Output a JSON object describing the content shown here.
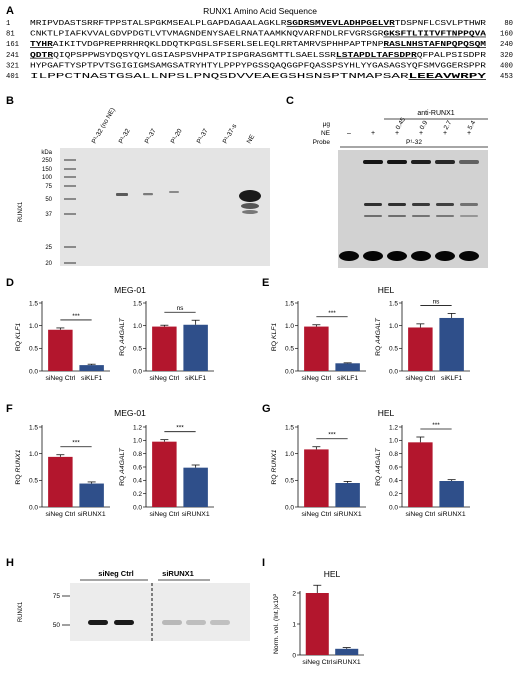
{
  "panelA": {
    "letter": "A",
    "title": "RUNX1 Amino Acid Sequence",
    "lines": [
      {
        "start": "1",
        "end": "80",
        "segs": [
          {
            "t": "MRIPVDASTSRRFTPPSTALSPGKMSEALPLGAPDAGAALAGKLR",
            "u": false
          },
          {
            "t": "SGDRSMVEVLADHPGELVR",
            "u": true
          },
          {
            "t": "TDSPNFLCSVLPTHWR",
            "u": false
          }
        ]
      },
      {
        "start": "81",
        "end": "160",
        "segs": [
          {
            "t": "CNKTLPIAFKVVALGDVPDGTLVTVMAGNDENYSAELRNATAAMKNQVARFNDLRFVGRSGR",
            "u": false
          },
          {
            "t": "GKSFTLTITVFTNPPQVA",
            "u": true
          }
        ]
      },
      {
        "start": "161",
        "end": "240",
        "segs": [
          {
            "t": "TYHR",
            "u": true
          },
          {
            "t": "AIKITVDGPREPRRHRQKLDDQTKPGSLSFSERLSELEQLRRTAMRVSPHHPAPTPNP",
            "u": false
          },
          {
            "t": "RASLNHSTAFNPQPQSQM",
            "u": true
          }
        ]
      },
      {
        "start": "241",
        "end": "320",
        "segs": [
          {
            "t": "QDTR",
            "u": true
          },
          {
            "t": "QIQPSPPWSYDQSYQYLGSIASPSVHPATPISPGRASGMTTLSAELSSR",
            "u": false
          },
          {
            "t": "LSTAPDLTAFSDPR",
            "u": true
          },
          {
            "t": "QFPALPSISDPR",
            "u": false
          }
        ]
      },
      {
        "start": "321",
        "end": "400",
        "segs": [
          {
            "t": "HYPGAFTYSPTPVTSGIGIGMSAMGSATRYHTYLPPPYPGSSQAQGGPFQASSPSYHLYYGASAGSYQFSMVGGERSPPR",
            "u": false
          }
        ]
      },
      {
        "start": "401",
        "end": "453",
        "segs": [
          {
            "t": "ILPPCTNASTGSALLNPSLPNQSDVVEAEGSHSNSPTNMAPSAR",
            "u": false
          },
          {
            "t": "LEEAVWRPY",
            "u": true
          }
        ]
      }
    ]
  },
  "panelB": {
    "letter": "B",
    "kda_label": "kDa",
    "side_label": "RUNX1",
    "ladder": [
      "250",
      "150",
      "100",
      "75",
      "50",
      "37",
      "25",
      "20"
    ],
    "lanes": [
      "P¹-32 (no NE)",
      "P¹-32",
      "P¹-37",
      "P¹-20",
      "P¹-37",
      "P¹-37-s",
      "NE"
    ]
  },
  "panelC": {
    "letter": "C",
    "antibody": "anti-RUNX1",
    "row_ug_label": "μg",
    "row_ne_label": "NE",
    "row_probe_label": "Probe",
    "ug_values": [
      "0.45",
      "0.9",
      "2.7",
      "5.4"
    ],
    "ne_values": [
      "–",
      "+",
      "+",
      "+",
      "+",
      "+"
    ],
    "probe": "P¹-32"
  },
  "chart_data": [
    {
      "panel": "D",
      "title": "MEG-01",
      "type": "bar",
      "ylabel_prefix": "RQ ",
      "ylabel_gene": "KLF1",
      "categories": [
        "siNeg Ctrl",
        "siKLF1"
      ],
      "values": [
        0.91,
        0.13
      ],
      "errors": [
        0.04,
        0.02
      ],
      "colors": [
        "#b3162d",
        "#2f4f8a"
      ],
      "ylim": [
        0,
        1.5
      ],
      "yticks": [
        "0.0",
        "0.5",
        "1.0",
        "1.5"
      ],
      "sig": "***"
    },
    {
      "panel": "D",
      "title": "",
      "type": "bar",
      "ylabel_prefix": "RQ ",
      "ylabel_gene": "A4GALT",
      "categories": [
        "siNeg Ctrl",
        "siKLF1"
      ],
      "values": [
        0.98,
        1.02
      ],
      "errors": [
        0.03,
        0.1
      ],
      "colors": [
        "#b3162d",
        "#2f4f8a"
      ],
      "ylim": [
        0,
        1.5
      ],
      "yticks": [
        "0.0",
        "0.5",
        "1.0",
        "1.5"
      ],
      "sig": "ns"
    },
    {
      "panel": "E",
      "title": "HEL",
      "type": "bar",
      "ylabel_prefix": "RQ ",
      "ylabel_gene": "KLF1",
      "categories": [
        "siNeg Ctrl",
        "siKLF1"
      ],
      "values": [
        0.98,
        0.17
      ],
      "errors": [
        0.04,
        0.01
      ],
      "colors": [
        "#b3162d",
        "#2f4f8a"
      ],
      "ylim": [
        0,
        1.5
      ],
      "yticks": [
        "0.0",
        "0.5",
        "1.0",
        "1.5"
      ],
      "sig": "***"
    },
    {
      "panel": "E",
      "title": "",
      "type": "bar",
      "ylabel_prefix": "RQ ",
      "ylabel_gene": "A4GALT",
      "categories": [
        "siNeg Ctrl",
        "siKLF1"
      ],
      "values": [
        0.96,
        1.17
      ],
      "errors": [
        0.08,
        0.1
      ],
      "colors": [
        "#b3162d",
        "#2f4f8a"
      ],
      "ylim": [
        0,
        1.5
      ],
      "yticks": [
        "0.0",
        "0.5",
        "1.0",
        "1.5"
      ],
      "sig": "ns"
    },
    {
      "panel": "F",
      "title": "MEG-01",
      "type": "bar",
      "ylabel_prefix": "RQ ",
      "ylabel_gene": "RUNX1",
      "categories": [
        "siNeg Ctrl",
        "siRUNX1"
      ],
      "values": [
        0.94,
        0.44
      ],
      "errors": [
        0.04,
        0.03
      ],
      "colors": [
        "#b3162d",
        "#2f4f8a"
      ],
      "ylim": [
        0,
        1.5
      ],
      "yticks": [
        "0.0",
        "0.5",
        "1.0",
        "1.5"
      ],
      "sig": "***"
    },
    {
      "panel": "F",
      "title": "",
      "type": "bar",
      "ylabel_prefix": "RQ ",
      "ylabel_gene": "A4GALT",
      "categories": [
        "siNeg Ctrl",
        "siRUNX1"
      ],
      "values": [
        0.98,
        0.59
      ],
      "errors": [
        0.03,
        0.04
      ],
      "colors": [
        "#b3162d",
        "#2f4f8a"
      ],
      "ylim": [
        0,
        1.2
      ],
      "yticks": [
        "0.0",
        "0.2",
        "0.4",
        "0.6",
        "0.8",
        "1.0",
        "1.2"
      ],
      "sig": "***"
    },
    {
      "panel": "G",
      "title": "HEL",
      "type": "bar",
      "ylabel_prefix": "RQ ",
      "ylabel_gene": "RUNX1",
      "categories": [
        "siNeg Ctrl",
        "siRUNX1"
      ],
      "values": [
        1.08,
        0.45
      ],
      "errors": [
        0.05,
        0.03
      ],
      "colors": [
        "#b3162d",
        "#2f4f8a"
      ],
      "ylim": [
        0,
        1.5
      ],
      "yticks": [
        "0.0",
        "0.5",
        "1.0",
        "1.5"
      ],
      "sig": "***"
    },
    {
      "panel": "G",
      "title": "",
      "type": "bar",
      "ylabel_prefix": "RQ ",
      "ylabel_gene": "A4GALT",
      "categories": [
        "siNeg Ctrl",
        "siRUNX1"
      ],
      "values": [
        0.97,
        0.39
      ],
      "errors": [
        0.08,
        0.02
      ],
      "colors": [
        "#b3162d",
        "#2f4f8a"
      ],
      "ylim": [
        0,
        1.2
      ],
      "yticks": [
        "0.0",
        "0.2",
        "0.4",
        "0.6",
        "0.8",
        "1.0",
        "1.2"
      ],
      "sig": "***"
    },
    {
      "panel": "I",
      "title": "HEL",
      "type": "bar",
      "ylabel": "Norm. vol. (Int.)x10³",
      "categories": [
        "siNeg Ctrl",
        "siRUNX1"
      ],
      "values": [
        2.0,
        0.2
      ],
      "errors": [
        0.25,
        0.04
      ],
      "colors": [
        "#b3162d",
        "#2f4f8a"
      ],
      "ylim": [
        0,
        2
      ],
      "yticks": [
        "0",
        "1",
        "2"
      ],
      "sig": ""
    }
  ],
  "panelH": {
    "letter": "H",
    "side_label": "RUNX1",
    "group1": "siNeg Ctrl",
    "group2": "siRUNX1",
    "ladder": [
      "75",
      "50"
    ]
  },
  "letters": {
    "D": "D",
    "E": "E",
    "F": "F",
    "G": "G",
    "I": "I"
  }
}
